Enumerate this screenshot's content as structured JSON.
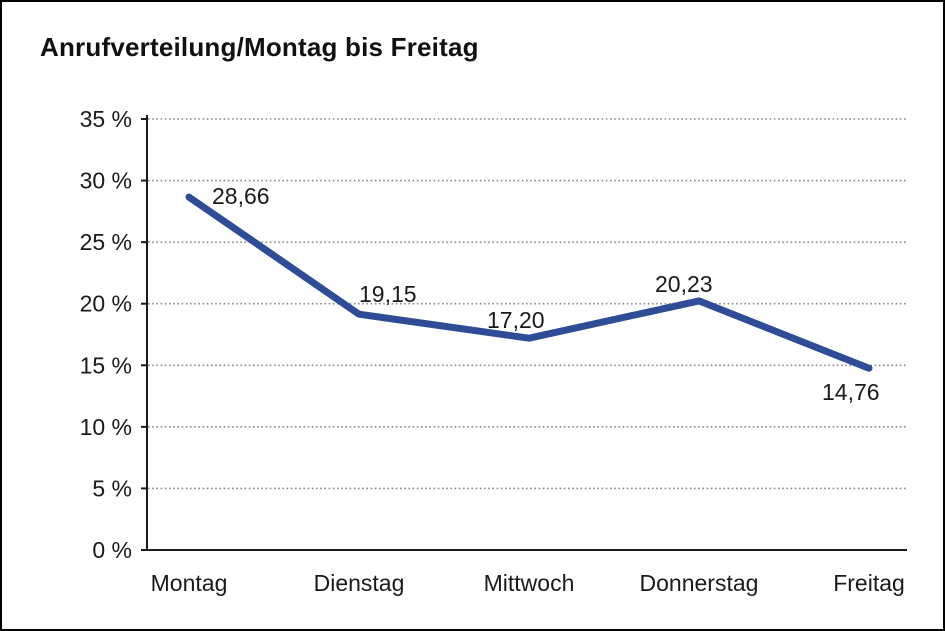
{
  "window": {
    "background_color": "#ffffff",
    "border_color": "#000000"
  },
  "chart_data": {
    "type": "line",
    "title": "Anrufverteilung/Montag bis Freitag",
    "categories": [
      "Montag",
      "Dienstag",
      "Mittwoch",
      "Donnerstag",
      "Freitag"
    ],
    "values": [
      28.66,
      19.15,
      17.2,
      20.23,
      14.76
    ],
    "point_labels": [
      "28,66",
      "19,15",
      "17,20",
      "20,23",
      "14,76"
    ],
    "y_ticks": [
      {
        "value": 0,
        "label": "0 %"
      },
      {
        "value": 5,
        "label": "5 %"
      },
      {
        "value": 10,
        "label": "10 %"
      },
      {
        "value": 15,
        "label": "15 %"
      },
      {
        "value": 20,
        "label": "20 %"
      },
      {
        "value": 25,
        "label": "25 %"
      },
      {
        "value": 30,
        "label": "30 %"
      },
      {
        "value": 35,
        "label": "35 %"
      }
    ],
    "ylim": [
      0,
      35
    ],
    "xlabel": "",
    "ylabel": "",
    "legend": "none",
    "grid": "horizontal-dotted",
    "line_color": "#2E4D96",
    "axis_color": "#1a1a1a",
    "grid_color": "#8a8a8a",
    "text_color": "#1a1a1a"
  }
}
